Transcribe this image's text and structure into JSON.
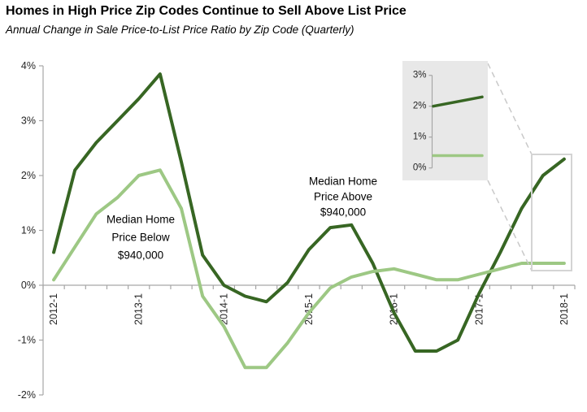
{
  "header": {
    "title": "Homes in High Price Zip Codes Continue to Sell Above List Price",
    "subtitle": "Annual Change in Sale Price-to-List Price Ratio by Zip Code (Quarterly)"
  },
  "colors": {
    "series_above": "#376623",
    "series_below": "#9dc884",
    "axis": "#a6a6a6",
    "tick_text": "#262626",
    "annotation_text": "#000000",
    "inset_bg": "#e8e8e8",
    "connector": "#c9c9c9",
    "callout_border": "#d4d4d4"
  },
  "chart_data": {
    "type": "line",
    "title": "Homes in High Price Zip Codes Continue to Sell Above List Price",
    "subtitle": "Annual Change in Sale Price-to-List Price Ratio by Zip Code (Quarterly)",
    "x": [
      "2012-1",
      "2012-2",
      "2012-3",
      "2012-4",
      "2013-1",
      "2013-2",
      "2013-3",
      "2013-4",
      "2014-1",
      "2014-2",
      "2014-3",
      "2014-4",
      "2015-1",
      "2015-2",
      "2015-3",
      "2015-4",
      "2016-1",
      "2016-2",
      "2016-3",
      "2016-4",
      "2017-1",
      "2017-2",
      "2017-3",
      "2017-4",
      "2018-1"
    ],
    "x_tick_labels": [
      "2012-1",
      "2013-1",
      "2014-1",
      "2015-1",
      "2016-1",
      "2017-1",
      "2018-1"
    ],
    "x_tick_indices": [
      0,
      4,
      8,
      12,
      16,
      20,
      24
    ],
    "ylim": [
      -2,
      4
    ],
    "y_ticks": [
      {
        "value": 4,
        "label": "4%"
      },
      {
        "value": 3,
        "label": "3%"
      },
      {
        "value": 2,
        "label": "2%"
      },
      {
        "value": 1,
        "label": "1%"
      },
      {
        "value": 0,
        "label": "0%"
      },
      {
        "value": -1,
        "label": "-1%"
      },
      {
        "value": -2,
        "label": "-2%"
      }
    ],
    "grid": false,
    "legend": "inline-annotations",
    "series": [
      {
        "name": "Median Home Price Above $940,000",
        "values": [
          0.6,
          2.1,
          2.6,
          3.0,
          3.4,
          3.85,
          2.25,
          0.55,
          0.0,
          -0.2,
          -0.3,
          0.05,
          0.65,
          1.05,
          1.1,
          0.4,
          -0.5,
          -1.2,
          -1.2,
          -1.0,
          -0.15,
          0.6,
          1.4,
          2.0,
          2.3
        ]
      },
      {
        "name": "Median Home Price Below $940,000",
        "values": [
          0.1,
          0.7,
          1.3,
          1.6,
          2.0,
          2.1,
          1.4,
          -0.2,
          -0.75,
          -1.5,
          -1.5,
          -1.05,
          -0.5,
          -0.05,
          0.15,
          0.25,
          0.3,
          0.2,
          0.1,
          0.1,
          0.2,
          0.3,
          0.4,
          0.4,
          0.4
        ]
      }
    ],
    "annotations": [
      {
        "id": "above",
        "lines": [
          "Median Home",
          "Price Above",
          "$940,000"
        ]
      },
      {
        "id": "below",
        "lines": [
          "Median Home",
          "Price Below",
          "$940,000"
        ]
      }
    ],
    "inset": {
      "ylim": [
        0,
        3
      ],
      "y_ticks": [
        {
          "value": 3,
          "label": "3%"
        },
        {
          "value": 2,
          "label": "2%"
        },
        {
          "value": 1,
          "label": "1%"
        },
        {
          "value": 0,
          "label": "0%"
        }
      ],
      "x": [
        "2017-4",
        "2018-1"
      ],
      "series": [
        {
          "name": "Median Home Price Above $940,000",
          "values": [
            2.0,
            2.3
          ]
        },
        {
          "name": "Median Home Price Below $940,000",
          "values": [
            0.4,
            0.4
          ]
        }
      ]
    }
  }
}
